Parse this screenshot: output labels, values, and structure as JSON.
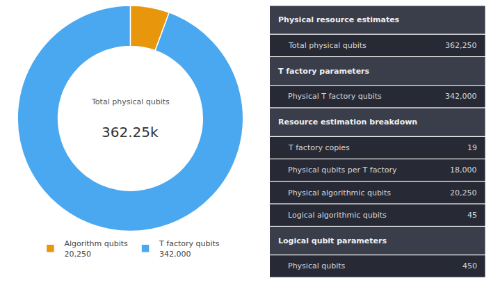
{
  "chart_data": [
    {
      "type": "pie",
      "categories": [
        "Algorithm qubits",
        "T factory qubits"
      ],
      "values": [
        20250,
        342000
      ],
      "value_labels": [
        "20,250",
        "342,000"
      ],
      "colors": [
        "#e8960c",
        "#4aa8f0"
      ],
      "annotations": [
        "Total physical qubits",
        "362.25k"
      ],
      "legend": "bottom"
    },
    {
      "type": "table",
      "categories": [
        "Physical resource estimates",
        "Total physical qubits",
        "T factory parameters",
        "Physical T factory qubits",
        "Resource estimation breakdown",
        "T factory copies",
        "Physical qubits per T factory",
        "Physical algorithmic qubits",
        "Logical algorithmic qubits",
        "Logical qubit parameters",
        "Physical qubits"
      ],
      "values": [
        null,
        362250,
        null,
        342000,
        null,
        19,
        18000,
        20250,
        45,
        null,
        450
      ],
      "value_labels": [
        null,
        "362,250",
        null,
        "342,000",
        null,
        null,
        "18,000",
        "20,250",
        null,
        null,
        null
      ],
      "header_rows": [
        true,
        false,
        true,
        false,
        true,
        false,
        false,
        false,
        false,
        true,
        false
      ],
      "colors": [
        "#3a3d4a",
        "#272a35",
        "#3a3d4a",
        "#272a35",
        "#3a3d4a",
        "#272a35",
        "#272a35",
        "#272a35",
        "#272a35",
        "#3a3d4a",
        "#272a35"
      ]
    }
  ]
}
